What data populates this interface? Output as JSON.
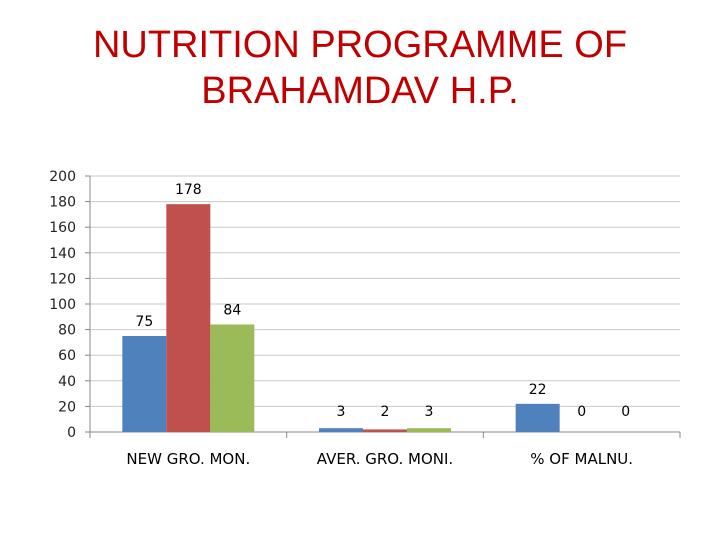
{
  "title_lines": [
    "NUTRITION PROGRAMME OF",
    "BRAHAMDAV H.P."
  ],
  "chart_data": {
    "type": "bar",
    "title": "NUTRITION PROGRAMME OF BRAHAMDAV H.P.",
    "categories": [
      "NEW GRO. MON.",
      "AVER. GRO. MONI.",
      "% OF MALNU."
    ],
    "series": [
      {
        "values": [
          75,
          3,
          22
        ],
        "color": "#4f81bd"
      },
      {
        "values": [
          178,
          2,
          0
        ],
        "color": "#c0504d"
      },
      {
        "values": [
          84,
          3,
          0
        ],
        "color": "#9bbb59"
      }
    ],
    "data_labels": [
      [
        "75",
        "3",
        "22"
      ],
      [
        "178",
        "2",
        "0"
      ],
      [
        "84",
        "3",
        "0"
      ]
    ],
    "ylim": [
      0,
      200
    ],
    "yticks": [
      0,
      20,
      40,
      60,
      80,
      100,
      120,
      140,
      160,
      180,
      200
    ],
    "grid": true,
    "legend": "none"
  }
}
